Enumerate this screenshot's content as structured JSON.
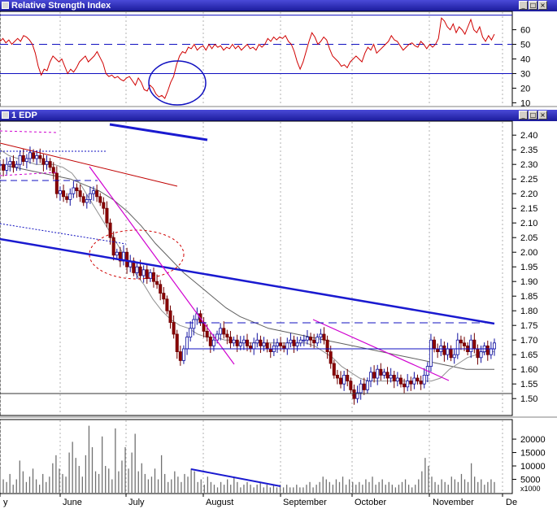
{
  "panels": {
    "rsi": {
      "title": "Relative Strength Index"
    },
    "price": {
      "title": "1 EDP"
    },
    "volume": {
      "multiplier_label": "x1000"
    }
  },
  "window_buttons": {
    "min": "_",
    "max": "□",
    "close": "×"
  },
  "chart_data": [
    {
      "type": "line",
      "title": "Relative Strength Index",
      "ylim": [
        8,
        72
      ],
      "yticks": [
        10,
        20,
        30,
        40,
        50,
        60
      ],
      "reference_lines": [
        70,
        50,
        30
      ],
      "values": [
        52,
        54,
        51,
        53,
        50,
        52,
        54,
        52,
        56,
        55,
        53,
        50,
        44,
        35,
        29,
        33,
        32,
        38,
        42,
        40,
        38,
        40,
        35,
        30,
        33,
        31,
        34,
        38,
        40,
        42,
        38,
        40,
        42,
        45,
        41,
        37,
        30,
        28,
        29,
        27,
        28,
        26,
        25,
        27,
        28,
        25,
        22,
        27,
        24,
        19,
        18,
        22,
        20,
        16,
        14,
        15,
        13,
        18,
        24,
        28,
        36,
        42,
        45,
        44,
        48,
        47,
        50,
        46,
        48,
        49,
        46,
        50,
        47,
        50,
        48,
        49,
        46,
        48,
        47,
        50,
        47,
        49,
        46,
        48,
        50,
        47,
        48,
        46,
        50,
        48,
        50,
        54,
        52,
        55,
        53,
        55,
        54,
        56,
        52,
        50,
        45,
        38,
        33,
        38,
        45,
        52,
        58,
        55,
        50,
        52,
        55,
        53,
        47,
        42,
        40,
        38,
        35,
        36,
        34,
        38,
        40,
        42,
        40,
        38,
        44,
        48,
        46,
        50,
        44,
        46,
        48,
        50,
        52,
        56,
        53,
        52,
        49,
        46,
        48,
        50,
        51,
        49,
        48,
        52,
        50,
        47,
        50,
        48,
        50,
        54,
        68,
        66,
        62,
        60,
        64,
        58,
        62,
        60,
        57,
        62,
        67,
        60,
        58,
        62,
        55,
        52,
        56,
        53,
        57
      ]
    },
    {
      "type": "candlestick",
      "title": "1 EDP",
      "ylim": [
        1.445,
        2.445
      ],
      "yticks": [
        "1.50",
        "1.55",
        "1.60",
        "1.65",
        "1.70",
        "1.75",
        "1.80",
        "1.85",
        "1.90",
        "1.95",
        "2.00",
        "2.05",
        "2.10",
        "2.15",
        "2.20",
        "2.25",
        "2.30",
        "2.35",
        "2.40"
      ],
      "values": [
        2.3,
        2.28,
        2.3,
        2.31,
        2.29,
        2.3,
        2.33,
        2.31,
        2.32,
        2.34,
        2.32,
        2.33,
        2.32,
        2.3,
        2.31,
        2.29,
        2.27,
        2.2,
        2.21,
        2.19,
        2.18,
        2.2,
        2.22,
        2.21,
        2.19,
        2.17,
        2.18,
        2.2,
        2.21,
        2.19,
        2.17,
        2.15,
        2.1,
        2.05,
        1.99,
        2.0,
        1.97,
        2.0,
        1.95,
        1.97,
        1.93,
        1.95,
        1.92,
        1.94,
        1.91,
        1.93,
        1.9,
        1.89,
        1.86,
        1.84,
        1.8,
        1.76,
        1.72,
        1.66,
        1.63,
        1.67,
        1.71,
        1.74,
        1.77,
        1.79,
        1.76,
        1.73,
        1.71,
        1.68,
        1.7,
        1.72,
        1.74,
        1.72,
        1.71,
        1.69,
        1.7,
        1.68,
        1.69,
        1.7,
        1.68,
        1.67,
        1.69,
        1.7,
        1.68,
        1.69,
        1.67,
        1.66,
        1.68,
        1.69,
        1.68,
        1.67,
        1.69,
        1.7,
        1.68,
        1.69,
        1.7,
        1.7,
        1.71,
        1.7,
        1.69,
        1.71,
        1.72,
        1.7,
        1.66,
        1.62,
        1.58,
        1.57,
        1.55,
        1.58,
        1.56,
        1.53,
        1.5,
        1.52,
        1.55,
        1.53,
        1.56,
        1.59,
        1.57,
        1.6,
        1.58,
        1.59,
        1.57,
        1.58,
        1.56,
        1.57,
        1.55,
        1.54,
        1.56,
        1.55,
        1.57,
        1.56,
        1.55,
        1.58,
        1.61,
        1.7,
        1.67,
        1.66,
        1.68,
        1.65,
        1.67,
        1.64,
        1.65,
        1.7,
        1.69,
        1.68,
        1.66,
        1.7,
        1.67,
        1.64,
        1.66,
        1.68,
        1.65,
        1.67,
        1.69
      ],
      "ma_fast": [
        2.35,
        2.33,
        2.32,
        2.31,
        2.3,
        2.3,
        2.3,
        2.29,
        2.27,
        2.23,
        2.18,
        2.13,
        2.08,
        2.03,
        1.98,
        1.93,
        1.89,
        1.84,
        1.8,
        1.77,
        1.75,
        1.74,
        1.72,
        1.71,
        1.71,
        1.7,
        1.7,
        1.69,
        1.69,
        1.69,
        1.69,
        1.69,
        1.69,
        1.69,
        1.69,
        1.68,
        1.66,
        1.64,
        1.61,
        1.59,
        1.57,
        1.56,
        1.56,
        1.56,
        1.56,
        1.56,
        1.56,
        1.56,
        1.56,
        1.57,
        1.6,
        1.62,
        1.64,
        1.65,
        1.66,
        1.66
      ],
      "ma_slow": [
        2.3,
        2.29,
        2.28,
        2.27,
        2.26,
        2.25,
        2.23,
        2.21,
        2.18,
        2.14,
        2.09,
        2.03,
        1.98,
        1.93,
        1.89,
        1.85,
        1.81,
        1.78,
        1.76,
        1.74,
        1.73,
        1.72,
        1.71,
        1.7,
        1.69,
        1.68,
        1.67,
        1.66,
        1.65,
        1.64,
        1.63,
        1.62,
        1.61,
        1.6,
        1.6,
        1.6
      ]
    },
    {
      "type": "bar",
      "title": "",
      "ylim": [
        0,
        27000
      ],
      "yticks": [
        5000,
        10000,
        15000,
        20000
      ],
      "ytick_labels": [
        "5000",
        "10000",
        "15000",
        "20000"
      ],
      "values": [
        9000,
        5000,
        4000,
        7000,
        3000,
        5000,
        12000,
        8000,
        4000,
        6000,
        9000,
        5000,
        3000,
        7000,
        4000,
        6000,
        11000,
        14000,
        9000,
        7000,
        6000,
        15000,
        19000,
        13000,
        10000,
        6000,
        14000,
        25000,
        17000,
        8000,
        7000,
        21000,
        10000,
        9000,
        5000,
        24000,
        8000,
        12000,
        17000,
        9000,
        15000,
        22000,
        8000,
        11000,
        7000,
        5000,
        6000,
        9000,
        5000,
        14000,
        7000,
        4000,
        5000,
        8000,
        6000,
        4000,
        7000,
        6000,
        9000,
        8000,
        4000,
        5000,
        3000,
        6000,
        4000,
        3000,
        2000,
        4000,
        3000,
        5000,
        3000,
        6000,
        4000,
        2000,
        3000,
        4000,
        3000,
        2000,
        3000,
        4000,
        2000,
        3000,
        2000,
        3000,
        2000,
        3000,
        2000,
        3000,
        2000,
        2000,
        3000,
        2000,
        2000,
        3000,
        4000,
        2000,
        3000,
        4000,
        6000,
        5000,
        4000,
        3000,
        5000,
        4000,
        6000,
        3000,
        5000,
        4000,
        3000,
        4000,
        3000,
        5000,
        4000,
        6000,
        3000,
        4000,
        5000,
        3000,
        4000,
        3000,
        2000,
        3000,
        4000,
        5000,
        3000,
        2000,
        3000,
        5000,
        8000,
        13000,
        10000,
        6000,
        4000,
        3000,
        5000,
        4000,
        3000,
        6000,
        5000,
        4000,
        7000,
        5000,
        4000,
        11000,
        6000,
        4000,
        5000,
        3000,
        4000,
        5000,
        4000
      ]
    }
  ],
  "x_axis": {
    "labels": [
      "y",
      "June",
      "July",
      "August",
      "September",
      "October",
      "November",
      "De"
    ]
  }
}
